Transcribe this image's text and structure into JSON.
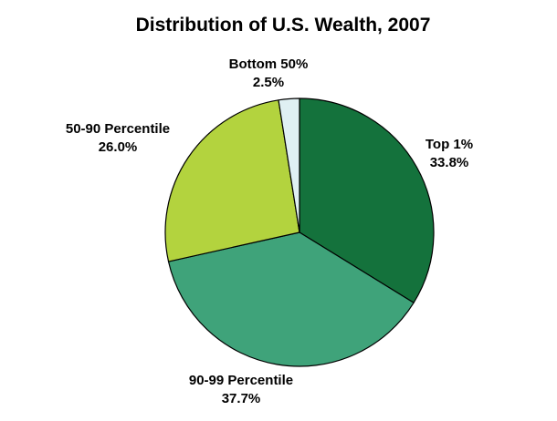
{
  "chart_data": {
    "type": "pie",
    "title": "Distribution of U.S. Wealth, 2007",
    "start_angle_deg": 0,
    "direction": "clockwise",
    "slices": [
      {
        "label": "Top 1%",
        "value_label": "33.8%",
        "value": 33.8,
        "color": "#14723c"
      },
      {
        "label": "90-99 Percentile",
        "value_label": "37.7%",
        "value": 37.7,
        "color": "#3fa37a"
      },
      {
        "label": "50-90 Percentile",
        "value_label": "26.0%",
        "value": 26.0,
        "color": "#b3d33e"
      },
      {
        "label": "Bottom 50%",
        "value_label": "2.5%",
        "value": 2.5,
        "color": "#dff0f3"
      }
    ],
    "outline_color": "#000000"
  }
}
